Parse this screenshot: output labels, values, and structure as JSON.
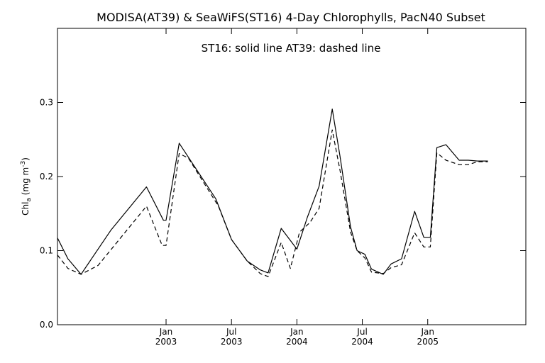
{
  "chart_data": {
    "type": "line",
    "title": "MODISA(AT39) & SeaWiFS(ST16) 4-Day Chlorophylls, PacN40 Subset",
    "subtitle": "ST16: solid line   AT39: dashed line",
    "ylabel": {
      "main": "Chl",
      "sub": "a",
      "units_pre": " (mg m",
      "units_sup": "-3",
      "units_post": ")"
    },
    "xlabel": "",
    "ylim": [
      0.0,
      0.4
    ],
    "xlim": [
      2002.17,
      2005.75
    ],
    "yticks": [
      {
        "value": 0.0,
        "label": "0.0"
      },
      {
        "value": 0.1,
        "label": "0.1"
      },
      {
        "value": 0.2,
        "label": "0.2"
      },
      {
        "value": 0.3,
        "label": "0.3"
      }
    ],
    "xticks": [
      {
        "value": 2003.0,
        "line1": "Jan",
        "line2": "2003"
      },
      {
        "value": 2003.5,
        "line1": "Jul",
        "line2": "2003"
      },
      {
        "value": 2004.0,
        "line1": "Jan",
        "line2": "2004"
      },
      {
        "value": 2004.5,
        "line1": "Jul",
        "line2": "2004"
      },
      {
        "value": 2005.0,
        "line1": "Jan",
        "line2": "2005"
      }
    ],
    "grid": false,
    "legend": "none",
    "series": [
      {
        "name": "ST16",
        "style": "solid",
        "x": [
          2002.17,
          2002.25,
          2002.35,
          2002.58,
          2002.85,
          2002.98,
          2003.0,
          2003.1,
          2003.38,
          2003.5,
          2003.62,
          2003.72,
          2003.78,
          2003.88,
          2004.0,
          2004.08,
          2004.17,
          2004.27,
          2004.33,
          2004.41,
          2004.46,
          2004.52,
          2004.57,
          2004.66,
          2004.72,
          2004.8,
          2004.9,
          2004.97,
          2005.02,
          2005.07,
          2005.14,
          2005.24,
          2005.31,
          2005.38,
          2005.46
        ],
        "y": [
          0.117,
          0.089,
          0.068,
          0.128,
          0.186,
          0.141,
          0.141,
          0.245,
          0.17,
          0.115,
          0.086,
          0.074,
          0.07,
          0.13,
          0.102,
          0.145,
          0.187,
          0.291,
          0.227,
          0.132,
          0.1,
          0.095,
          0.075,
          0.068,
          0.082,
          0.089,
          0.153,
          0.118,
          0.118,
          0.239,
          0.243,
          0.222,
          0.222,
          0.221,
          0.221
        ]
      },
      {
        "name": "AT39",
        "style": "dashed",
        "x": [
          2002.17,
          2002.25,
          2002.35,
          2002.48,
          2002.85,
          2002.97,
          2003.0,
          2003.1,
          2003.17,
          2003.4,
          2003.5,
          2003.62,
          2003.72,
          2003.78,
          2003.88,
          2003.95,
          2004.02,
          2004.1,
          2004.17,
          2004.27,
          2004.33,
          2004.41,
          2004.46,
          2004.52,
          2004.57,
          2004.66,
          2004.72,
          2004.8,
          2004.9,
          2004.97,
          2005.02,
          2005.07,
          2005.14,
          2005.24,
          2005.31,
          2005.38,
          2005.46
        ],
        "y": [
          0.094,
          0.076,
          0.068,
          0.08,
          0.16,
          0.107,
          0.107,
          0.231,
          0.225,
          0.16,
          0.115,
          0.086,
          0.069,
          0.065,
          0.111,
          0.076,
          0.125,
          0.138,
          0.157,
          0.263,
          0.208,
          0.125,
          0.1,
          0.09,
          0.071,
          0.069,
          0.077,
          0.081,
          0.124,
          0.105,
          0.105,
          0.232,
          0.222,
          0.216,
          0.216,
          0.22,
          0.22
        ]
      }
    ]
  }
}
